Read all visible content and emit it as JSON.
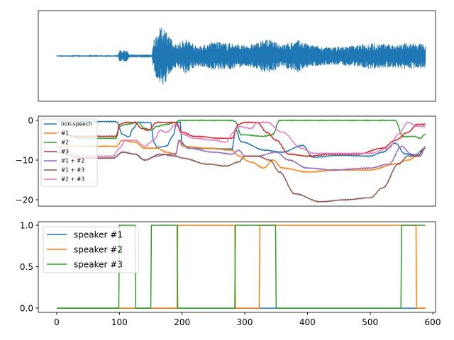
{
  "chart_data": [
    {
      "type": "line",
      "description_kind": "waveform",
      "xlim": [
        -29.4,
        604.2
      ],
      "ylim": [
        -1.05,
        1.05
      ],
      "axes_ticks": "hidden",
      "series": [
        {
          "color": "#1f77b4",
          "envelope": [
            [
              0,
              0.02
            ],
            [
              98,
              0.02
            ],
            [
              100,
              0.2
            ],
            [
              112,
              0.2
            ],
            [
              115,
              0.05
            ],
            [
              152,
              0.05
            ],
            [
              155,
              0.6
            ],
            [
              165,
              0.95
            ],
            [
              172,
              1.0
            ],
            [
              180,
              0.7
            ],
            [
              186,
              0.4
            ],
            [
              195,
              0.45
            ],
            [
              205,
              0.6
            ],
            [
              215,
              0.5
            ],
            [
              222,
              0.35
            ],
            [
              240,
              0.4
            ],
            [
              248,
              0.5
            ],
            [
              270,
              0.45
            ],
            [
              280,
              0.45
            ],
            [
              300,
              0.35
            ],
            [
              320,
              0.45
            ],
            [
              335,
              0.6
            ],
            [
              345,
              0.5
            ],
            [
              360,
              0.4
            ],
            [
              385,
              0.55
            ],
            [
              400,
              0.4
            ],
            [
              430,
              0.3
            ],
            [
              470,
              0.35
            ],
            [
              500,
              0.45
            ],
            [
              530,
              0.4
            ],
            [
              560,
              0.45
            ],
            [
              588,
              0.4
            ]
          ]
        }
      ]
    },
    {
      "type": "line",
      "xlim": [
        -29.4,
        604.2
      ],
      "ylim": [
        -21.6,
        1.07
      ],
      "yticks": [
        0,
        -10,
        -20
      ],
      "ytick_labels": [
        "0",
        "−10",
        "−20"
      ],
      "legend": "top-left",
      "series": [
        {
          "name": "non-speech",
          "color": "#1f77b4",
          "points": [
            [
              0,
              -0.2
            ],
            [
              95,
              -0.3
            ],
            [
              105,
              -3.5
            ],
            [
              115,
              -4.2
            ],
            [
              122,
              -2
            ],
            [
              130,
              -0.5
            ],
            [
              150,
              -0.5
            ],
            [
              155,
              -5.5
            ],
            [
              160,
              -6.8
            ],
            [
              175,
              -6.5
            ],
            [
              185,
              -4
            ],
            [
              192,
              -0.5
            ],
            [
              197,
              -0.5
            ],
            [
              200,
              -6
            ],
            [
              210,
              -7
            ],
            [
              280,
              -7.2
            ],
            [
              285,
              -2.1
            ],
            [
              294,
              -5.4
            ],
            [
              332,
              -7.5
            ],
            [
              359,
              -8
            ],
            [
              393,
              -6.3
            ],
            [
              408,
              -9.3
            ],
            [
              450,
              -8.8
            ],
            [
              500,
              -9
            ],
            [
              520,
              -8
            ],
            [
              540,
              -5.7
            ],
            [
              555,
              -8.4
            ],
            [
              570,
              -8.8
            ],
            [
              588,
              -7
            ]
          ]
        },
        {
          "name": "#1",
          "color": "#ff7f0e",
          "points": [
            [
              0,
              -6.5
            ],
            [
              95,
              -6.5
            ],
            [
              105,
              -5
            ],
            [
              125,
              -5.5
            ],
            [
              140,
              -7
            ],
            [
              160,
              -7
            ],
            [
              175,
              -8
            ],
            [
              190,
              -8.5
            ],
            [
              195,
              -5
            ],
            [
              200,
              -6.5
            ],
            [
              240,
              -7
            ],
            [
              280,
              -7.5
            ],
            [
              290,
              -9
            ],
            [
              310,
              -10.5
            ],
            [
              330,
              -12
            ],
            [
              345,
              -10
            ],
            [
              360,
              -12
            ],
            [
              400,
              -13
            ],
            [
              450,
              -12.5
            ],
            [
              500,
              -12.5
            ],
            [
              540,
              -11
            ],
            [
              560,
              -10
            ],
            [
              575,
              -9
            ],
            [
              588,
              -7
            ]
          ]
        },
        {
          "name": "#2",
          "color": "#2ca02c",
          "points": [
            [
              0,
              -3
            ],
            [
              40,
              -4.5
            ],
            [
              95,
              -4.5
            ],
            [
              100,
              -1.5
            ],
            [
              110,
              -1
            ],
            [
              130,
              -0.5
            ],
            [
              140,
              -2
            ],
            [
              150,
              -2.5
            ],
            [
              160,
              -1.5
            ],
            [
              175,
              -1
            ],
            [
              190,
              -0.5
            ],
            [
              195,
              0
            ],
            [
              280,
              0
            ],
            [
              285,
              -0.3
            ],
            [
              294,
              -3.6
            ],
            [
              330,
              -4
            ],
            [
              345,
              -3.5
            ],
            [
              355,
              0
            ],
            [
              540,
              0
            ],
            [
              552,
              -4.1
            ],
            [
              570,
              -4
            ],
            [
              580,
              -4.5
            ],
            [
              588,
              -3.4
            ]
          ]
        },
        {
          "name": "#3",
          "color": "#d62728",
          "points": [
            [
              0,
              -3
            ],
            [
              30,
              -4
            ],
            [
              95,
              -4
            ],
            [
              100,
              -1
            ],
            [
              110,
              -0.5
            ],
            [
              125,
              -0.5
            ],
            [
              135,
              -2
            ],
            [
              145,
              -2.5
            ],
            [
              160,
              -0.5
            ],
            [
              190,
              -0.5
            ],
            [
              200,
              -3
            ],
            [
              220,
              -4
            ],
            [
              260,
              -4.5
            ],
            [
              280,
              -4.5
            ],
            [
              290,
              -1
            ],
            [
              300,
              -0.5
            ],
            [
              320,
              -0.5
            ],
            [
              335,
              -3
            ],
            [
              350,
              -5
            ],
            [
              370,
              -8.5
            ],
            [
              400,
              -9
            ],
            [
              440,
              -8.5
            ],
            [
              480,
              -8.5
            ],
            [
              520,
              -7
            ],
            [
              540,
              -5
            ],
            [
              560,
              -3
            ],
            [
              575,
              -1
            ],
            [
              588,
              -1
            ]
          ]
        },
        {
          "name": "#1 + #2",
          "color": "#9467bd",
          "points": [
            [
              0,
              -8
            ],
            [
              40,
              -9.5
            ],
            [
              90,
              -9.5
            ],
            [
              105,
              -8
            ],
            [
              125,
              -8.5
            ],
            [
              140,
              -10
            ],
            [
              160,
              -9
            ],
            [
              175,
              -8.5
            ],
            [
              190,
              -8.5
            ],
            [
              195,
              -5
            ],
            [
              210,
              -7
            ],
            [
              250,
              -8
            ],
            [
              280,
              -8.5
            ],
            [
              290,
              -7.5
            ],
            [
              300,
              -9
            ],
            [
              320,
              -9
            ],
            [
              350,
              -8
            ],
            [
              370,
              -10
            ],
            [
              400,
              -12
            ],
            [
              440,
              -12.5
            ],
            [
              500,
              -12
            ],
            [
              530,
              -11
            ],
            [
              550,
              -6.5
            ],
            [
              565,
              -8.5
            ],
            [
              580,
              -9
            ],
            [
              588,
              -6.5
            ]
          ]
        },
        {
          "name": "#1 + #3",
          "color": "#8c564b",
          "points": [
            [
              0,
              -8
            ],
            [
              40,
              -9.5
            ],
            [
              90,
              -9.5
            ],
            [
              105,
              -8
            ],
            [
              125,
              -8.5
            ],
            [
              140,
              -10
            ],
            [
              165,
              -8.5
            ],
            [
              190,
              -9
            ],
            [
              200,
              -9.5
            ],
            [
              240,
              -11
            ],
            [
              270,
              -11.5
            ],
            [
              290,
              -10.5
            ],
            [
              300,
              -9
            ],
            [
              320,
              -9
            ],
            [
              340,
              -10
            ],
            [
              355,
              -13
            ],
            [
              380,
              -18.5
            ],
            [
              420,
              -20.5
            ],
            [
              460,
              -20
            ],
            [
              500,
              -19.5
            ],
            [
              520,
              -17
            ],
            [
              545,
              -11
            ],
            [
              560,
              -9
            ],
            [
              575,
              -9
            ],
            [
              588,
              -7
            ]
          ]
        },
        {
          "name": "#2 + #3",
          "color": "#e377c2",
          "points": [
            [
              0,
              -7
            ],
            [
              40,
              -9
            ],
            [
              90,
              -9
            ],
            [
              100,
              -7
            ],
            [
              110,
              -5
            ],
            [
              125,
              -5
            ],
            [
              140,
              -6.5
            ],
            [
              155,
              -5
            ],
            [
              165,
              -2.5
            ],
            [
              175,
              -3
            ],
            [
              190,
              -1
            ],
            [
              200,
              -3.5
            ],
            [
              220,
              -4.5
            ],
            [
              250,
              -5
            ],
            [
              270,
              -5.5
            ],
            [
              282,
              -3
            ],
            [
              290,
              -1.5
            ],
            [
              310,
              -2
            ],
            [
              320,
              -0.5
            ],
            [
              335,
              -0.5
            ],
            [
              360,
              -3
            ],
            [
              390,
              -7
            ],
            [
              410,
              -8.3
            ],
            [
              500,
              -8.3
            ],
            [
              530,
              -7
            ],
            [
              545,
              -3.5
            ],
            [
              560,
              -0.5
            ],
            [
              575,
              -1.5
            ],
            [
              588,
              -1.5
            ]
          ]
        }
      ]
    },
    {
      "type": "line",
      "xlim": [
        -29.4,
        604.2
      ],
      "ylim": [
        -0.05,
        1.043
      ],
      "xticks": [
        0,
        100,
        200,
        300,
        400,
        500,
        600
      ],
      "xtick_labels": [
        "0",
        "100",
        "200",
        "300",
        "400",
        "500",
        "600"
      ],
      "yticks": [
        0,
        0.5,
        1.0
      ],
      "ytick_labels": [
        "0.0",
        "0.5",
        "1.0"
      ],
      "legend": "top-left",
      "series": [
        {
          "name": "speaker #1",
          "color": "#1f77b4",
          "steps": [
            [
              0,
              0
            ],
            [
              588,
              0
            ]
          ]
        },
        {
          "name": "speaker #2",
          "color": "#ff7f0e",
          "steps": [
            [
              0,
              0
            ],
            [
              193,
              1
            ],
            [
              285,
              0
            ],
            [
              324,
              1
            ],
            [
              574,
              0
            ],
            [
              588,
              0
            ]
          ]
        },
        {
          "name": "speaker #3",
          "color": "#2ca02c",
          "steps": [
            [
              0,
              0
            ],
            [
              100,
              1
            ],
            [
              126,
              0
            ],
            [
              151,
              1
            ],
            [
              193,
              0
            ],
            [
              285,
              1
            ],
            [
              350,
              0
            ],
            [
              550,
              1
            ],
            [
              588,
              1
            ]
          ]
        }
      ]
    }
  ]
}
